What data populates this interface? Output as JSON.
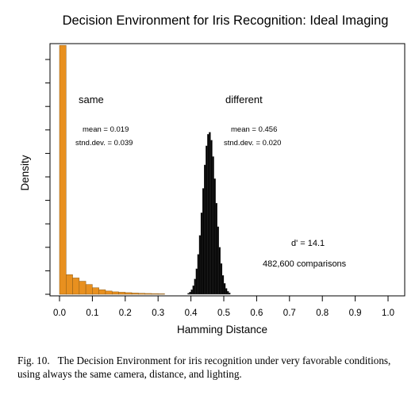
{
  "chart_data": {
    "type": "bar",
    "title": "Decision Environment for Iris Recognition:  Ideal Imaging",
    "xlabel": "Hamming Distance",
    "ylabel": "Density",
    "xlim": [
      0.0,
      1.0
    ],
    "xticks": [
      "0.0",
      "0.1",
      "0.2",
      "0.3",
      "0.4",
      "0.5",
      "0.6",
      "0.7",
      "0.8",
      "0.9",
      "1.0"
    ],
    "ylim": [
      0,
      31
    ],
    "ytick_count": 11,
    "grid": false,
    "series": [
      {
        "name": "same",
        "color": "#e8901f",
        "bin_width": 0.02,
        "bins": [
          {
            "x": 0.0,
            "y": 30.5
          },
          {
            "x": 0.02,
            "y": 2.4
          },
          {
            "x": 0.04,
            "y": 2.0
          },
          {
            "x": 0.06,
            "y": 1.6
          },
          {
            "x": 0.08,
            "y": 1.2
          },
          {
            "x": 0.1,
            "y": 0.8
          },
          {
            "x": 0.12,
            "y": 0.55
          },
          {
            "x": 0.14,
            "y": 0.4
          },
          {
            "x": 0.16,
            "y": 0.3
          },
          {
            "x": 0.18,
            "y": 0.25
          },
          {
            "x": 0.2,
            "y": 0.2
          },
          {
            "x": 0.22,
            "y": 0.15
          },
          {
            "x": 0.24,
            "y": 0.12
          },
          {
            "x": 0.26,
            "y": 0.1
          },
          {
            "x": 0.28,
            "y": 0.08
          },
          {
            "x": 0.3,
            "y": 0.06
          }
        ]
      },
      {
        "name": "different",
        "color": "#000000",
        "mean": 0.456,
        "sd": 0.02,
        "peak": 19.9,
        "bin_width": 0.005,
        "range": [
          0.39,
          0.52
        ]
      }
    ],
    "annotations": {
      "same_label": "same",
      "same_mean": "mean = 0.019",
      "same_sd": "stnd.dev. = 0.039",
      "diff_label": "different",
      "diff_mean": "mean = 0.456",
      "diff_sd": "stnd.dev. = 0.020",
      "dprime": "d' = 14.1",
      "comparisons": "482,600 comparisons"
    }
  },
  "caption": {
    "fig_label": "Fig. 10.",
    "text": "The Decision Environment for iris recognition under very favorable conditions, using always the same camera, distance, and lighting."
  }
}
